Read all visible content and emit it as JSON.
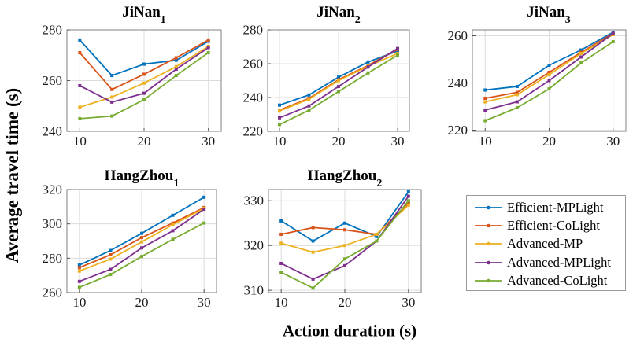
{
  "axes": {
    "ylabel": "Average travel time (s)",
    "xlabel": "Action duration (s)"
  },
  "legend": {
    "position": "bottom-right",
    "border_color": "#999999"
  },
  "palette": {
    "blue": "#0072BD",
    "orange": "#D95319",
    "yellow": "#EDB120",
    "purple": "#7E2F8E",
    "green": "#77AC30"
  },
  "chart_data": [
    {
      "id": "jinan1",
      "type": "line",
      "title": "JiNan",
      "title_sub": "1",
      "x": [
        10,
        15,
        20,
        25,
        30
      ],
      "xticks": [
        10,
        20,
        30
      ],
      "xlim": [
        8,
        32
      ],
      "yticks": [
        240,
        260,
        280
      ],
      "ylim": [
        240,
        280
      ],
      "grid": true,
      "series": [
        {
          "name": "Efficient-MPLight",
          "color": "#0072BD",
          "values": [
            276,
            262,
            266.5,
            268,
            275.5
          ]
        },
        {
          "name": "Efficient-CoLight",
          "color": "#D95319",
          "values": [
            271,
            256.5,
            262.5,
            269,
            276
          ]
        },
        {
          "name": "Advanced-MP",
          "color": "#EDB120",
          "values": [
            249.5,
            253.5,
            259,
            265.5,
            273.5
          ]
        },
        {
          "name": "Advanced-MPLight",
          "color": "#7E2F8E",
          "values": [
            258,
            251.5,
            255,
            264.5,
            273
          ]
        },
        {
          "name": "Advanced-CoLight",
          "color": "#77AC30",
          "values": [
            245,
            246,
            252.5,
            262,
            271
          ]
        }
      ]
    },
    {
      "id": "jinan2",
      "type": "line",
      "title": "JiNan",
      "title_sub": "2",
      "x": [
        10,
        15,
        20,
        25,
        30
      ],
      "xticks": [
        10,
        20,
        30
      ],
      "xlim": [
        8,
        32
      ],
      "yticks": [
        220,
        240,
        260,
        280
      ],
      "ylim": [
        220,
        280
      ],
      "grid": true,
      "series": [
        {
          "name": "Efficient-MPLight",
          "color": "#0072BD",
          "values": [
            235.5,
            241.5,
            252,
            261,
            267.5
          ]
        },
        {
          "name": "Efficient-CoLight",
          "color": "#D95319",
          "values": [
            232.5,
            239.5,
            250.5,
            259,
            268.5
          ]
        },
        {
          "name": "Advanced-MP",
          "color": "#EDB120",
          "values": [
            232,
            239,
            250,
            258.5,
            266
          ]
        },
        {
          "name": "Advanced-MPLight",
          "color": "#7E2F8E",
          "values": [
            228,
            235,
            246.5,
            258,
            269
          ]
        },
        {
          "name": "Advanced-CoLight",
          "color": "#77AC30",
          "values": [
            224,
            232.5,
            243.5,
            254.5,
            265
          ]
        }
      ]
    },
    {
      "id": "jinan3",
      "type": "line",
      "title": "JiNan",
      "title_sub": "3",
      "x": [
        10,
        15,
        20,
        25,
        30
      ],
      "xticks": [
        10,
        20,
        30
      ],
      "xlim": [
        8,
        32
      ],
      "yticks": [
        220,
        240,
        260
      ],
      "ylim": [
        219.5,
        262.5
      ],
      "grid": true,
      "series": [
        {
          "name": "Efficient-MPLight",
          "color": "#0072BD",
          "values": [
            237,
            238.5,
            247.5,
            254,
            261.5
          ]
        },
        {
          "name": "Efficient-CoLight",
          "color": "#D95319",
          "values": [
            233.5,
            236,
            244.5,
            253,
            261
          ]
        },
        {
          "name": "Advanced-MP",
          "color": "#EDB120",
          "values": [
            232,
            235,
            243.5,
            252.5,
            260.5
          ]
        },
        {
          "name": "Advanced-MPLight",
          "color": "#7E2F8E",
          "values": [
            228.5,
            232,
            241,
            251,
            261
          ]
        },
        {
          "name": "Advanced-CoLight",
          "color": "#77AC30",
          "values": [
            224,
            229.5,
            237.5,
            248.5,
            257.5
          ]
        }
      ]
    },
    {
      "id": "hangzhou1",
      "type": "line",
      "title": "HangZhou",
      "title_sub": "1",
      "x": [
        10,
        15,
        20,
        25,
        30
      ],
      "xticks": [
        10,
        20,
        30
      ],
      "xlim": [
        8,
        32
      ],
      "yticks": [
        260,
        280,
        300,
        320
      ],
      "ylim": [
        260,
        320
      ],
      "grid": true,
      "series": [
        {
          "name": "Efficient-MPLight",
          "color": "#0072BD",
          "values": [
            276,
            284.5,
            294.5,
            305,
            315.5
          ]
        },
        {
          "name": "Efficient-CoLight",
          "color": "#D95319",
          "values": [
            274.5,
            282,
            292,
            300.5,
            309.5
          ]
        },
        {
          "name": "Advanced-MP",
          "color": "#EDB120",
          "values": [
            272.5,
            279.5,
            289.5,
            299.5,
            309
          ]
        },
        {
          "name": "Advanced-MPLight",
          "color": "#7E2F8E",
          "values": [
            266.5,
            273.5,
            286,
            296,
            308.5
          ]
        },
        {
          "name": "Advanced-CoLight",
          "color": "#77AC30",
          "values": [
            263,
            270.5,
            281,
            291,
            300.5
          ]
        }
      ]
    },
    {
      "id": "hangzhou2",
      "type": "line",
      "title": "HangZhou",
      "title_sub": "2",
      "x": [
        10,
        15,
        20,
        25,
        30
      ],
      "xticks": [
        10,
        20,
        30
      ],
      "xlim": [
        8,
        32
      ],
      "yticks": [
        310,
        320,
        330
      ],
      "ylim": [
        309.5,
        332.5
      ],
      "grid": true,
      "series": [
        {
          "name": "Efficient-MPLight",
          "color": "#0072BD",
          "values": [
            325.5,
            321,
            325,
            322,
            332
          ]
        },
        {
          "name": "Efficient-CoLight",
          "color": "#D95319",
          "values": [
            322.5,
            324,
            323.5,
            322.5,
            329.5
          ]
        },
        {
          "name": "Advanced-MP",
          "color": "#EDB120",
          "values": [
            320.5,
            318.5,
            320,
            322.5,
            329
          ]
        },
        {
          "name": "Advanced-MPLight",
          "color": "#7E2F8E",
          "values": [
            316,
            312.5,
            315.5,
            321,
            331
          ]
        },
        {
          "name": "Advanced-CoLight",
          "color": "#77AC30",
          "values": [
            314,
            310.5,
            317,
            321,
            330
          ]
        }
      ]
    }
  ]
}
